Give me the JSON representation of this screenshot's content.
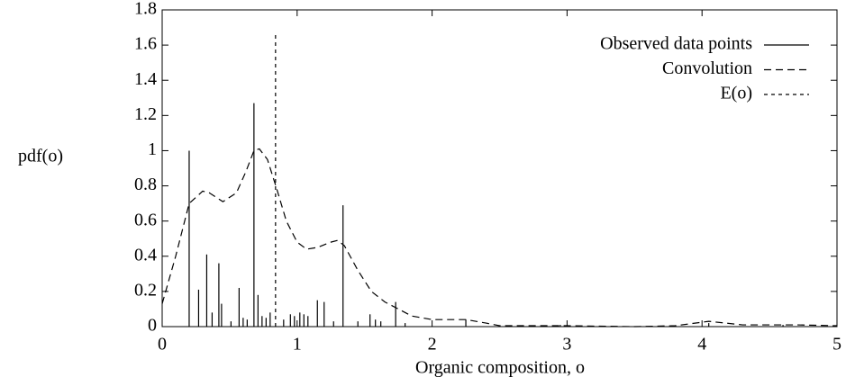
{
  "chart_data": {
    "type": "line",
    "x_label": "Organic composition, o",
    "y_label": "pdf(o)",
    "xlim": [
      0,
      5
    ],
    "xticks": [
      0,
      1,
      2,
      3,
      4,
      5
    ],
    "ylim": [
      0,
      1.8
    ],
    "yticks": [
      0,
      0.2,
      0.4,
      0.6,
      0.8,
      1,
      1.2,
      1.4,
      1.6,
      1.8
    ],
    "legend": "upper right",
    "series": [
      {
        "name": "Observed data points",
        "color": "#000000",
        "style": "stem",
        "x": [
          0.2,
          0.27,
          0.33,
          0.37,
          0.42,
          0.44,
          0.51,
          0.57,
          0.6,
          0.63,
          0.68,
          0.71,
          0.74,
          0.77,
          0.8,
          0.9,
          0.95,
          0.98,
          1.02,
          1.05,
          1.08,
          1.15,
          1.2,
          1.27,
          1.34,
          1.45,
          1.54,
          1.58,
          1.62,
          1.73,
          1.8,
          2.25,
          2.95,
          4.05,
          4.6
        ],
        "values": [
          1.0,
          0.21,
          0.41,
          0.08,
          0.36,
          0.13,
          0.03,
          0.22,
          0.05,
          0.04,
          1.27,
          0.18,
          0.06,
          0.05,
          0.08,
          0.04,
          0.07,
          0.06,
          0.08,
          0.07,
          0.06,
          0.15,
          0.14,
          0.03,
          0.69,
          0.03,
          0.07,
          0.04,
          0.03,
          0.14,
          0.02,
          0.04,
          0.01,
          0.02,
          0.01
        ]
      },
      {
        "name": "Convolution",
        "color": "#000000",
        "style": "dashed",
        "x": [
          0,
          0.1,
          0.2,
          0.3,
          0.35,
          0.45,
          0.55,
          0.62,
          0.68,
          0.72,
          0.78,
          0.85,
          0.92,
          1.0,
          1.07,
          1.15,
          1.25,
          1.3,
          1.35,
          1.45,
          1.55,
          1.65,
          1.75,
          1.85,
          2.0,
          2.25,
          2.4,
          2.5,
          3.0,
          3.5,
          3.8,
          4.05,
          4.3,
          4.7,
          5.0
        ],
        "values": [
          0.13,
          0.4,
          0.7,
          0.77,
          0.76,
          0.71,
          0.76,
          0.88,
          1.0,
          1.01,
          0.95,
          0.78,
          0.6,
          0.48,
          0.44,
          0.45,
          0.48,
          0.49,
          0.46,
          0.32,
          0.2,
          0.14,
          0.1,
          0.06,
          0.04,
          0.04,
          0.02,
          0.005,
          0.005,
          0,
          0.005,
          0.03,
          0.01,
          0.01,
          0.005
        ]
      },
      {
        "name": "E(o)",
        "color": "#000000",
        "style": "dotted",
        "x": [
          0.84,
          0.84
        ],
        "values": [
          0,
          1.67
        ]
      }
    ]
  }
}
